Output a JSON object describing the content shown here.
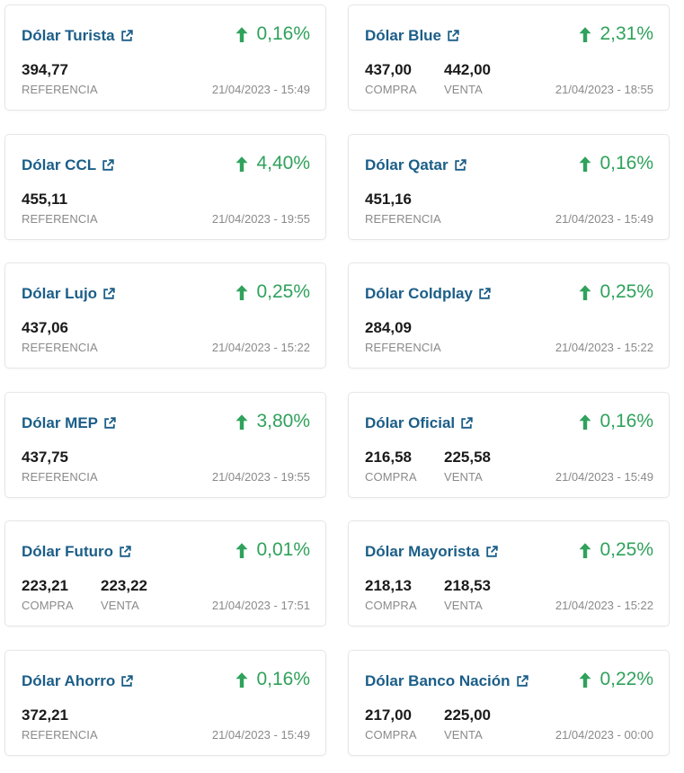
{
  "colors": {
    "title": "#1b5e88",
    "positive": "#2fa25b",
    "value": "#1a1a1a",
    "label": "#8a8a8a",
    "border": "#e6e6e6"
  },
  "icons": {
    "link": "external-link-icon",
    "trend": "arrow-up-icon"
  },
  "cards": [
    {
      "title": "Dólar Turista",
      "change": "0,16%",
      "values": [
        {
          "value": "394,77",
          "label": "REFERENCIA"
        }
      ],
      "date": "21/04/2023 - 15:49"
    },
    {
      "title": "Dólar Blue",
      "change": "2,31%",
      "values": [
        {
          "value": "437,00",
          "label": "COMPRA"
        },
        {
          "value": "442,00",
          "label": "VENTA"
        }
      ],
      "date": "21/04/2023 - 18:55"
    },
    {
      "title": "Dólar CCL",
      "change": "4,40%",
      "values": [
        {
          "value": "455,11",
          "label": "REFERENCIA"
        }
      ],
      "date": "21/04/2023 - 19:55"
    },
    {
      "title": "Dólar Qatar",
      "change": "0,16%",
      "values": [
        {
          "value": "451,16",
          "label": "REFERENCIA"
        }
      ],
      "date": "21/04/2023 - 15:49"
    },
    {
      "title": "Dólar Lujo",
      "change": "0,25%",
      "values": [
        {
          "value": "437,06",
          "label": "REFERENCIA"
        }
      ],
      "date": "21/04/2023 - 15:22"
    },
    {
      "title": "Dólar Coldplay",
      "change": "0,25%",
      "values": [
        {
          "value": "284,09",
          "label": "REFERENCIA"
        }
      ],
      "date": "21/04/2023 - 15:22"
    },
    {
      "title": "Dólar MEP",
      "change": "3,80%",
      "values": [
        {
          "value": "437,75",
          "label": "REFERENCIA"
        }
      ],
      "date": "21/04/2023 - 19:55"
    },
    {
      "title": "Dólar Oficial",
      "change": "0,16%",
      "values": [
        {
          "value": "216,58",
          "label": "COMPRA"
        },
        {
          "value": "225,58",
          "label": "VENTA"
        }
      ],
      "date": "21/04/2023 - 15:49"
    },
    {
      "title": "Dólar Futuro",
      "change": "0,01%",
      "values": [
        {
          "value": "223,21",
          "label": "COMPRA"
        },
        {
          "value": "223,22",
          "label": "VENTA"
        }
      ],
      "date": "21/04/2023 - 17:51"
    },
    {
      "title": "Dólar Mayorista",
      "change": "0,25%",
      "values": [
        {
          "value": "218,13",
          "label": "COMPRA"
        },
        {
          "value": "218,53",
          "label": "VENTA"
        }
      ],
      "date": "21/04/2023 - 15:22"
    },
    {
      "title": "Dólar Ahorro",
      "change": "0,16%",
      "values": [
        {
          "value": "372,21",
          "label": "REFERENCIA"
        }
      ],
      "date": "21/04/2023 - 15:49"
    },
    {
      "title": "Dólar Banco Nación",
      "change": "0,22%",
      "values": [
        {
          "value": "217,00",
          "label": "COMPRA"
        },
        {
          "value": "225,00",
          "label": "VENTA"
        }
      ],
      "date": "21/04/2023 - 00:00"
    }
  ]
}
